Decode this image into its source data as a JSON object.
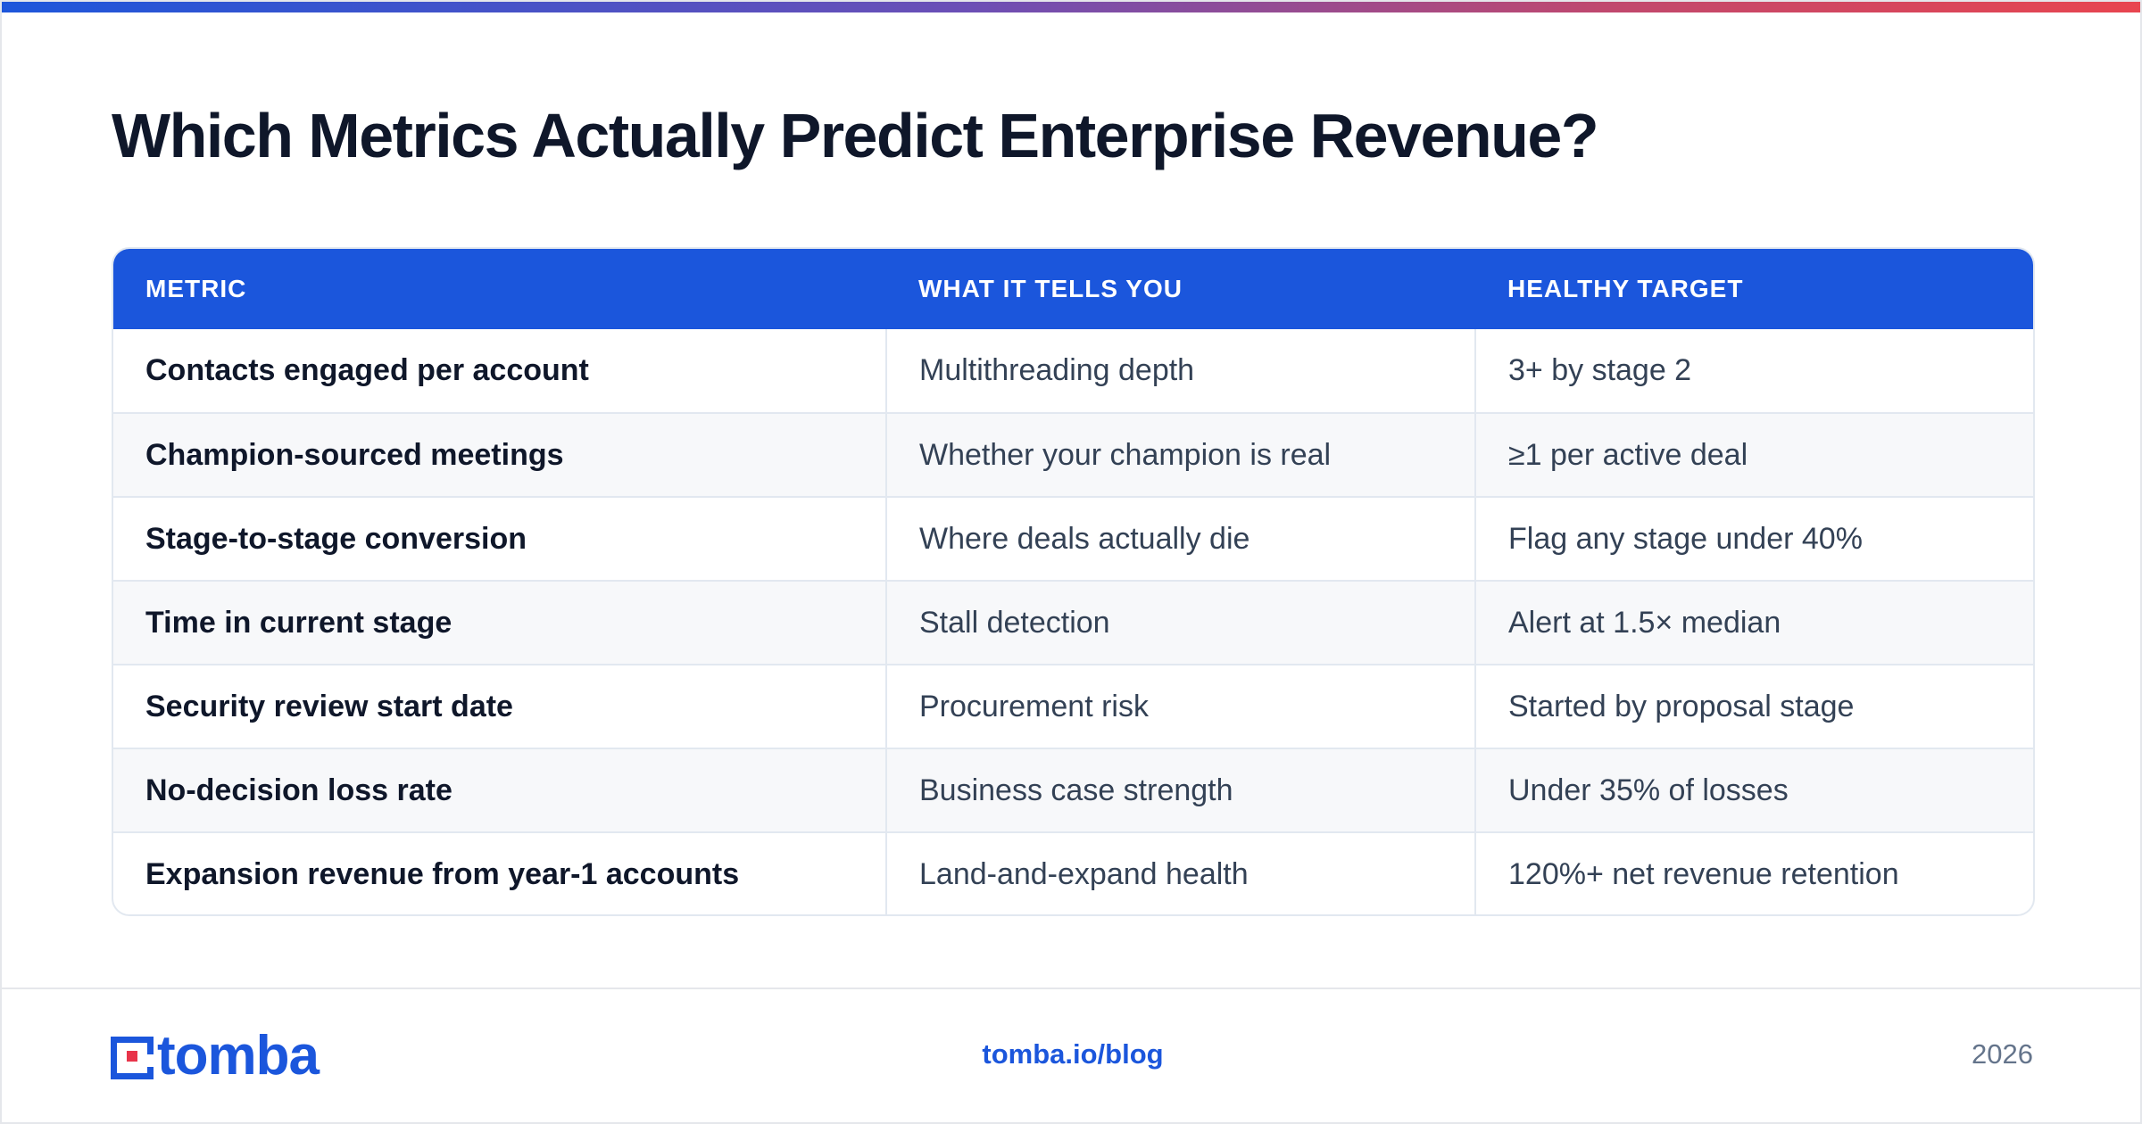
{
  "title": "Which Metrics Actually Predict Enterprise Revenue?",
  "table": {
    "headers": [
      "METRIC",
      "WHAT IT TELLS YOU",
      "HEALTHY TARGET"
    ],
    "rows": [
      [
        "Contacts engaged per account",
        "Multithreading depth",
        "3+ by stage 2"
      ],
      [
        "Champion-sourced meetings",
        "Whether your champion is real",
        "≥1 per active deal"
      ],
      [
        "Stage-to-stage conversion",
        "Where deals actually die",
        "Flag any stage under 40%"
      ],
      [
        "Time in current stage",
        "Stall detection",
        "Alert at 1.5× median"
      ],
      [
        "Security review start date",
        "Procurement risk",
        "Started by proposal stage"
      ],
      [
        "No-decision loss rate",
        "Business case strength",
        "Under 35% of losses"
      ],
      [
        "Expansion revenue from year-1 accounts",
        "Land-and-expand health",
        "120%+ net revenue retention"
      ]
    ]
  },
  "footer": {
    "logo_text": "tomba",
    "link": "tomba.io/blog",
    "year": "2026"
  },
  "colors": {
    "accent": "#1b56dc",
    "logo_dot": "#e8344a",
    "title": "#0f172a"
  },
  "icons": {
    "logo_mark": "tomba-logo-icon"
  }
}
